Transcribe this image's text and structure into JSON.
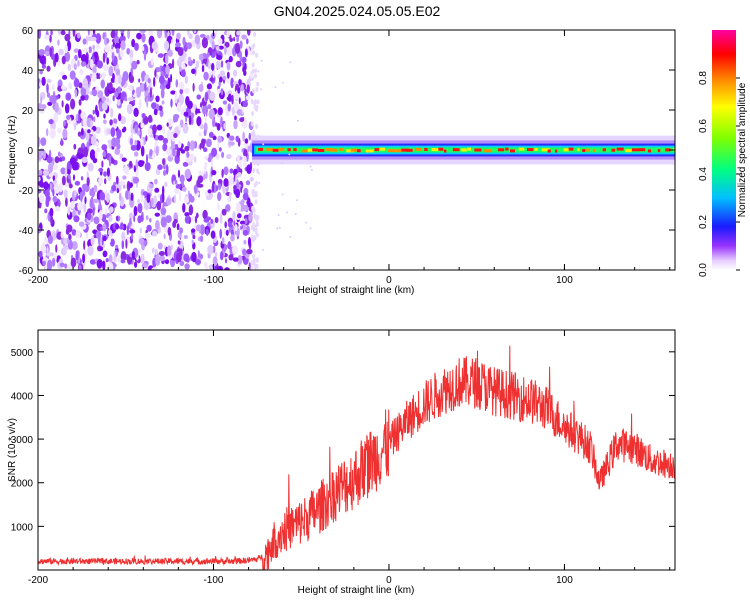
{
  "title": "GN04.2025.024.05.05.E02",
  "chart_data": [
    {
      "type": "heatmap",
      "name": "spectrogram",
      "xlabel": "Height of straight line (km)",
      "ylabel": "Frequency (Hz)",
      "xlim": [
        -200,
        163
      ],
      "ylim": [
        -60,
        60
      ],
      "xticks": [
        "-200",
        "-100",
        "0",
        "100"
      ],
      "xtick_values": [
        -200,
        -100,
        0,
        100
      ],
      "yticks": [
        "60",
        "40",
        "20",
        "0",
        "-20",
        "-40",
        "-60"
      ],
      "ytick_values": [
        60,
        40,
        20,
        0,
        -20,
        -40,
        -60
      ],
      "colorbar": {
        "label": "Normalized spectral amplitude",
        "ticks": [
          "0.0",
          "0.2",
          "0.4",
          "0.6",
          "0.8"
        ],
        "tick_values": [
          0.0,
          0.2,
          0.4,
          0.6,
          0.8
        ],
        "range": [
          0,
          1
        ],
        "colormap": "gnuplot rainbow (white-violet-blue-cyan-green-yellow-red-magenta)"
      },
      "noise_region_x": [
        -200,
        -78
      ],
      "signal_band": {
        "x": [
          -78,
          163
        ],
        "center_hz": 0,
        "halfwidth_hz": 4
      },
      "grid": false
    },
    {
      "type": "line",
      "name": "snr",
      "xlabel": "Height of straight line (km)",
      "ylabel": "SNR (10 * v/v)",
      "xlim": [
        -200,
        163
      ],
      "ylim": [
        0,
        5500
      ],
      "xticks": [
        "-200",
        "-100",
        "0",
        "100"
      ],
      "xtick_values": [
        -200,
        -100,
        0,
        100
      ],
      "yticks": [
        "5000",
        "4000",
        "3000",
        "2000",
        "1000"
      ],
      "ytick_values": [
        5000,
        4000,
        3000,
        2000,
        1000
      ],
      "color": "#ef3030",
      "x": [
        -200,
        -180,
        -160,
        -140,
        -120,
        -100,
        -90,
        -80,
        -75,
        -70,
        -65,
        -60,
        -55,
        -50,
        -40,
        -30,
        -20,
        -10,
        0,
        10,
        20,
        30,
        40,
        50,
        60,
        70,
        80,
        90,
        100,
        110,
        115,
        120,
        130,
        140,
        150,
        163
      ],
      "y": [
        200,
        200,
        200,
        200,
        200,
        200,
        200,
        220,
        250,
        350,
        700,
        900,
        1000,
        1100,
        1400,
        1800,
        2100,
        2500,
        2900,
        3400,
        3800,
        4100,
        4300,
        4300,
        4100,
        4000,
        3900,
        3700,
        3300,
        3000,
        2800,
        2000,
        2900,
        2800,
        2500,
        2400
      ],
      "grid": false
    }
  ]
}
